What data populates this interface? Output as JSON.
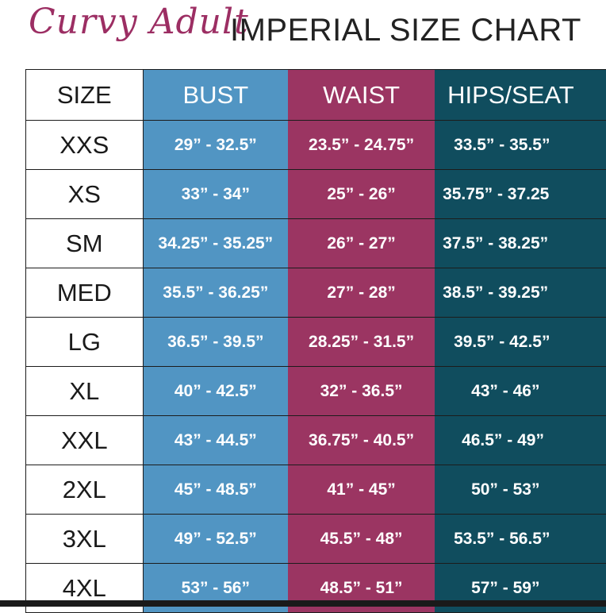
{
  "header": {
    "brand": "Curvy Adult",
    "title": "IMPERIAL SIZE CHART"
  },
  "table": {
    "columns": [
      "SIZE",
      "BUST",
      "WAIST",
      "HIPS/SEAT"
    ],
    "rows": [
      {
        "size": "XXS",
        "bust": "29” - 32.5”",
        "waist": "23.5” - 24.75”",
        "hips": "33.5” - 35.5”"
      },
      {
        "size": "XS",
        "bust": "33” - 34”",
        "waist": "25” - 26”",
        "hips": "35.75” - 37.25"
      },
      {
        "size": "SM",
        "bust": "34.25” - 35.25”",
        "waist": "26” - 27”",
        "hips": "37.5” - 38.25”"
      },
      {
        "size": "MED",
        "bust": "35.5” - 36.25”",
        "waist": "27” - 28”",
        "hips": "38.5” - 39.25”"
      },
      {
        "size": "LG",
        "bust": "36.5” - 39.5”",
        "waist": "28.25” - 31.5”",
        "hips": "39.5” - 42.5”"
      },
      {
        "size": "XL",
        "bust": "40” - 42.5”",
        "waist": "32” - 36.5”",
        "hips": "43” - 46”"
      },
      {
        "size": "XXL",
        "bust": "43” - 44.5”",
        "waist": "36.75” - 40.5”",
        "hips": "46.5” - 49”"
      },
      {
        "size": "2XL",
        "bust": "45” - 48.5”",
        "waist": "41” - 45”",
        "hips": "50” - 53”"
      },
      {
        "size": "3XL",
        "bust": "49” - 52.5”",
        "waist": "45.5” - 48”",
        "hips": "53.5” - 56.5”"
      },
      {
        "size": "4XL",
        "bust": "53” - 56”",
        "waist": "48.5” - 51”",
        "hips": "57” - 59”"
      }
    ]
  },
  "colors": {
    "brand": "#9c2e63",
    "bust": "#5195c3",
    "waist": "#9b3562",
    "hips": "#104d5e"
  }
}
